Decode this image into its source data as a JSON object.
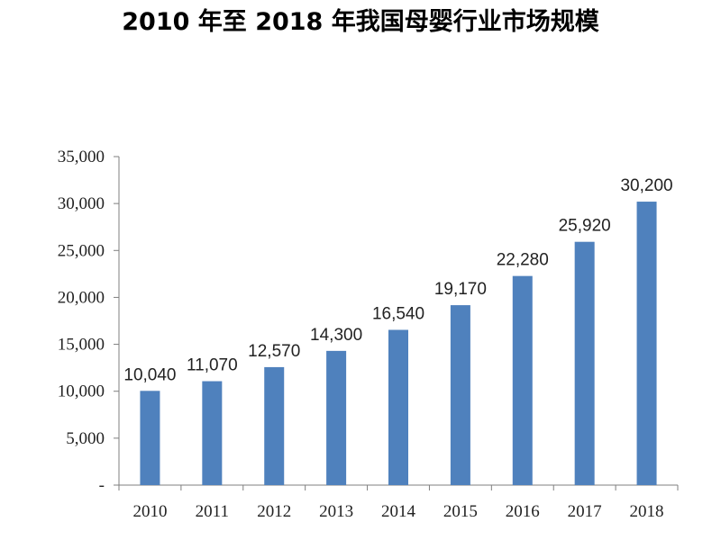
{
  "chart_data": {
    "type": "bar",
    "title": "2010 年至 2018 年我国母婴行业市场规模",
    "xlabel": "",
    "ylabel": "",
    "categories": [
      "2010",
      "2011",
      "2012",
      "2013",
      "2014",
      "2015",
      "2016",
      "2017",
      "2018"
    ],
    "values": [
      10040,
      11070,
      12570,
      14300,
      16540,
      19170,
      22280,
      25920,
      30200
    ],
    "data_labels": [
      "10,040",
      "11,070",
      "12,570",
      "14,300",
      "16,540",
      "19,170",
      "22,280",
      "25,920",
      "30,200"
    ],
    "ylim": [
      0,
      35000
    ],
    "yticks": [
      0,
      5000,
      10000,
      15000,
      20000,
      25000,
      30000,
      35000
    ],
    "ytick_labels": [
      "-",
      "5,000",
      "10,000",
      "15,000",
      "20,000",
      "25,000",
      "30,000",
      "35,000"
    ],
    "bar_color": "#4f81bd",
    "axis_color": "#7f7f7f",
    "grid": false,
    "legend": "none"
  }
}
